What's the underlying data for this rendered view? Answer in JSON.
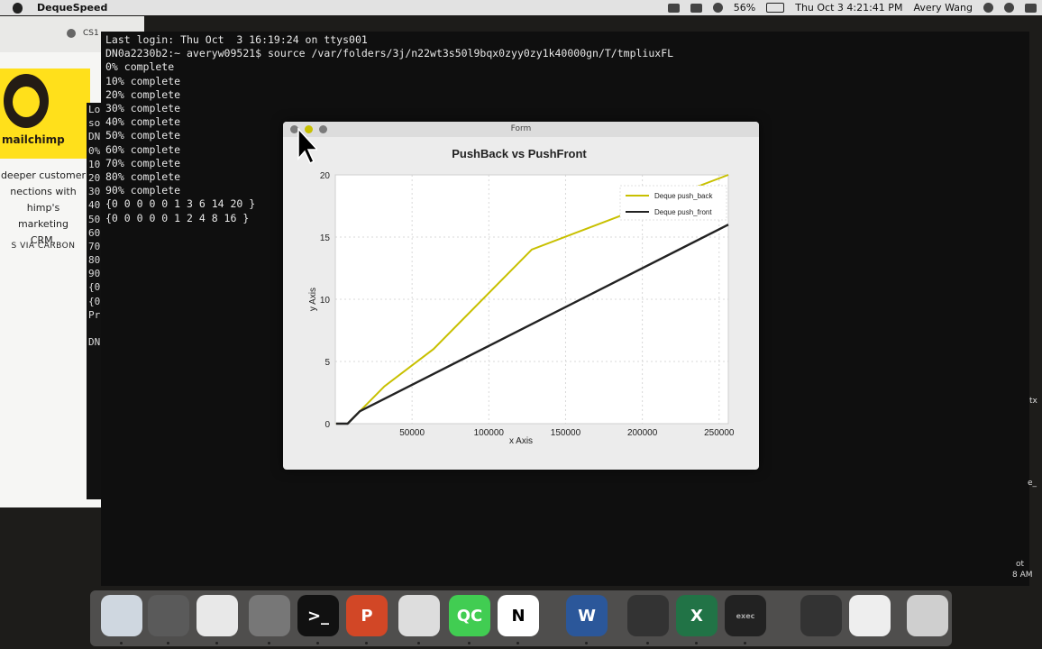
{
  "menubar": {
    "app_name": "DequeSpeed",
    "battery": "56%",
    "datetime": "Thu Oct 3  4:21:41 PM",
    "user": "Avery Wang"
  },
  "browser": {
    "tab_label": "CS1",
    "brand": "mailchimp",
    "ad_lines": [
      "deeper customer",
      "nections with",
      "himp's marketing",
      "CRM."
    ],
    "carbon": "S VIA CARBON"
  },
  "back_terminal": {
    "lines": [
      "Lo",
      "so",
      "DN",
      "0%",
      "10",
      "20",
      "30",
      "40",
      "50",
      "60",
      "70",
      "80",
      "90",
      "{0",
      "{0",
      "Pr",
      "",
      "DN"
    ]
  },
  "terminal": {
    "lines": [
      "Last login: Thu Oct  3 16:19:24 on ttys001",
      "DN0a2230b2:~ averyw09521$ source /var/folders/3j/n22wt3s50l9bqx0zyy0zy1k40000gn/T/tmpliuxFL",
      "0% complete",
      "10% complete",
      "20% complete",
      "30% complete",
      "40% complete",
      "50% complete",
      "60% complete",
      "70% complete",
      "80% complete",
      "90% complete",
      "{0 0 0 0 0 1 3 6 14 20 }",
      "{0 0 0 0 0 1 2 4 8 16 }"
    ]
  },
  "form": {
    "title": "Form"
  },
  "right_strip": {
    "texts": [
      "tx",
      "e_",
      "ot",
      "8 AM"
    ]
  },
  "colors": {
    "push_back": "#c8c000",
    "push_front": "#222222",
    "mailchimp_yellow": "#ffe01b"
  },
  "dock": {
    "items": [
      {
        "icon": "finder-icon",
        "label": ""
      },
      {
        "icon": "launchpad-icon",
        "label": ""
      },
      {
        "icon": "photos-icon",
        "label": ""
      },
      {
        "icon": "system-preferences-icon",
        "label": ""
      },
      {
        "icon": "terminal-icon",
        "label": ">_"
      },
      {
        "icon": "powerpoint-icon",
        "label": "P"
      },
      {
        "icon": "chrome-icon",
        "label": ""
      },
      {
        "icon": "qt-creator-icon",
        "label": "QC"
      },
      {
        "icon": "notion-icon",
        "label": "N"
      },
      {
        "icon": "word-icon",
        "label": "W"
      },
      {
        "icon": "final-cut-icon",
        "label": ""
      },
      {
        "icon": "excel-icon",
        "label": "X"
      },
      {
        "icon": "exec-icon",
        "label": "exec"
      },
      {
        "icon": "scanner-icon",
        "label": ""
      },
      {
        "icon": "window-icon",
        "label": ""
      },
      {
        "icon": "trash-icon",
        "label": ""
      }
    ]
  },
  "chart_data": {
    "type": "line",
    "title": "PushBack vs PushFront",
    "xlabel": "x Axis",
    "ylabel": "y Axis",
    "xlim": [
      0,
      256000
    ],
    "ylim": [
      0,
      20
    ],
    "x_ticks": [
      50000,
      100000,
      150000,
      200000,
      250000
    ],
    "y_ticks": [
      0,
      5,
      10,
      15,
      20
    ],
    "legend_position": "top-right",
    "series": [
      {
        "name": "Deque push_back",
        "color": "#c8c000",
        "x": [
          500,
          1000,
          2000,
          4000,
          8000,
          16000,
          32000,
          64000,
          128000,
          256000
        ],
        "y": [
          0,
          0,
          0,
          0,
          0,
          1,
          3,
          6,
          14,
          20
        ]
      },
      {
        "name": "Deque push_front",
        "color": "#222222",
        "x": [
          500,
          1000,
          2000,
          4000,
          8000,
          16000,
          32000,
          64000,
          128000,
          256000
        ],
        "y": [
          0,
          0,
          0,
          0,
          0,
          1,
          2,
          4,
          8,
          16
        ]
      }
    ]
  }
}
